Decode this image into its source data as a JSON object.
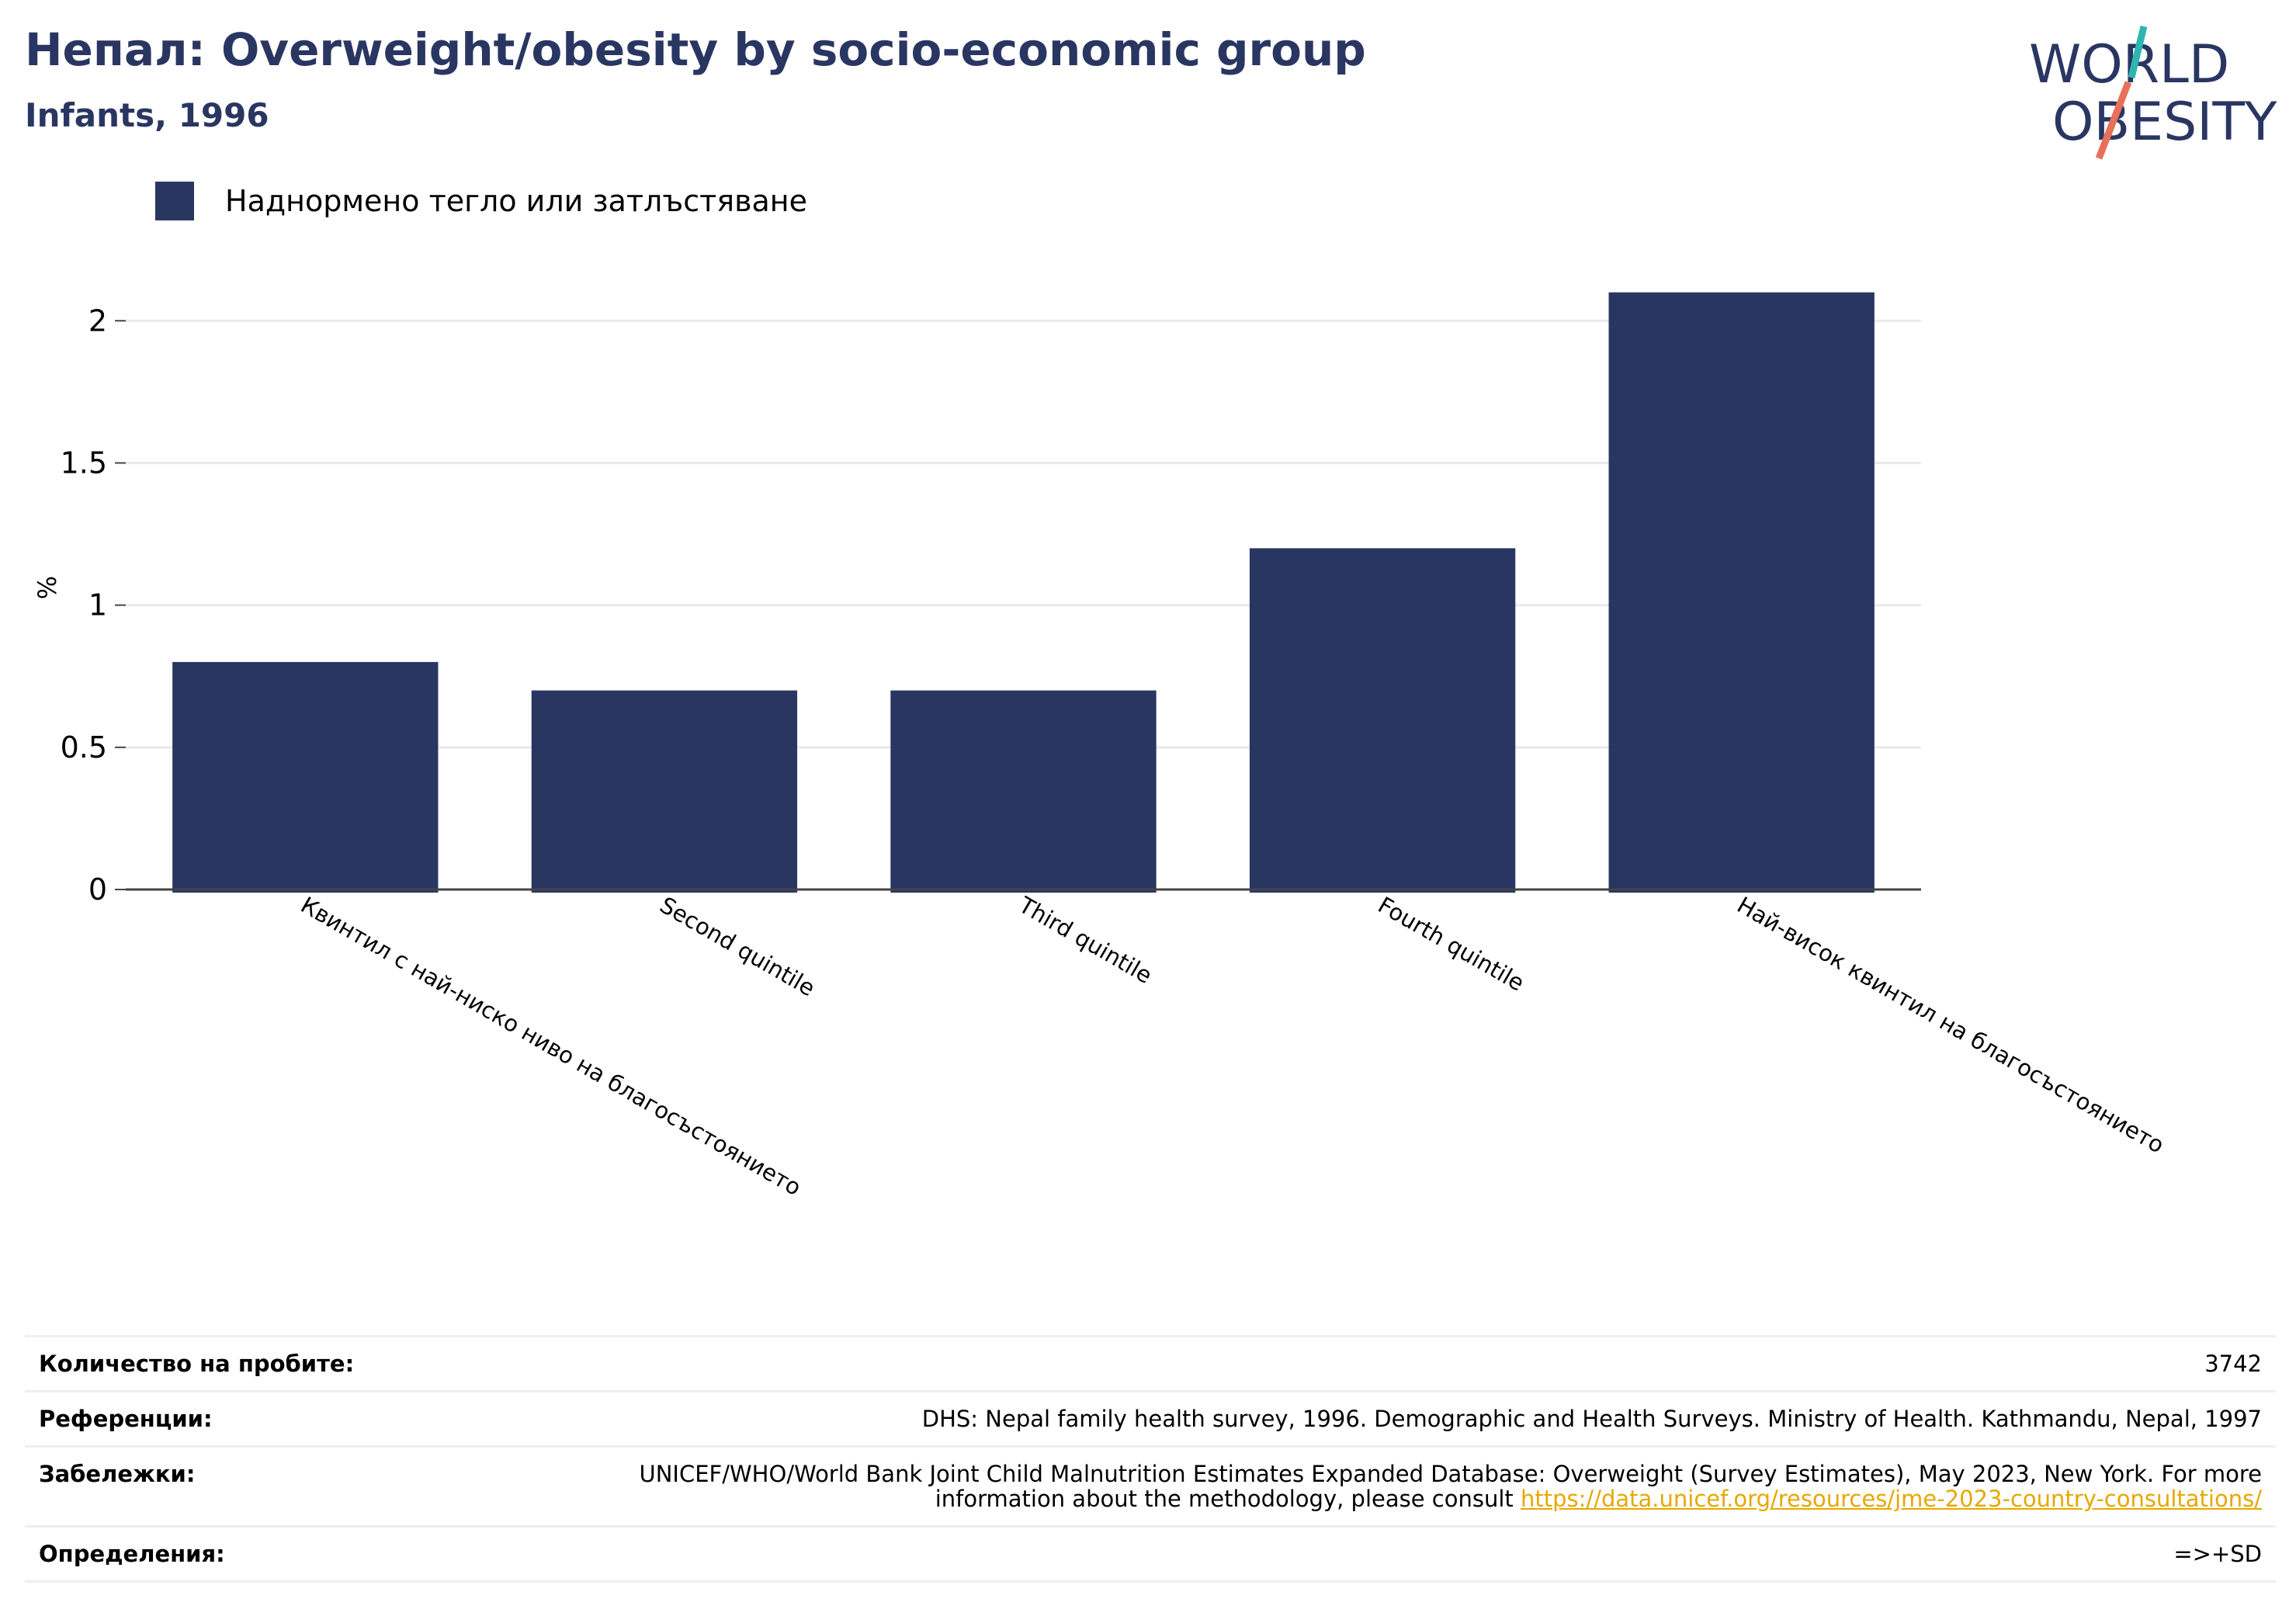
{
  "header": {
    "title": "Непал: Overweight/obesity by socio-economic group",
    "subtitle": "Infants, 1996"
  },
  "logo": {
    "line1": "WORLD",
    "line2": "OBESITY",
    "colors": {
      "text": "#2a3662",
      "teal": "#2fb5b0",
      "coral": "#e8705a"
    }
  },
  "legend": {
    "label": "Наднормено тегло или затлъстяване",
    "color": "#2a3662"
  },
  "chart_data": {
    "type": "bar",
    "categories": [
      "Квинтил с най-ниско ниво на благосъстоянието",
      "Second quintile",
      "Third quintile",
      "Fourth quintile",
      "Най-висок квинтил на благосъстоянието"
    ],
    "series": [
      {
        "name": "Наднормено тегло или затлъстяване",
        "values": [
          0.8,
          0.7,
          0.7,
          1.2,
          2.1
        ],
        "color": "#2a3662"
      }
    ],
    "ylabel": "%",
    "ylim": [
      0,
      2.2
    ],
    "yticks": [
      0,
      0.5,
      1,
      1.5,
      2
    ],
    "ytick_labels": [
      "0",
      "0.5",
      "1",
      "1.5",
      "2"
    ],
    "grid": true,
    "legend_position": "top-left"
  },
  "meta": {
    "sample_size_label": "Количество на пробите:",
    "sample_size_value": "3742",
    "references_label": "Референции:",
    "references_value": "DHS: Nepal family health survey, 1996. Demographic and Health Surveys. Ministry of Health. Kathmandu, Nepal, 1997",
    "notes_label": "Забележки:",
    "notes_value": "UNICEF/WHO/World Bank Joint Child Malnutrition Estimates Expanded Database: Overweight (Survey Estimates), May 2023, New York. For more information about the methodology, please consult ",
    "notes_link": "https://data.unicef.org/resources/jme-2023-country-consultations/",
    "definitions_label": "Определения:",
    "definitions_value": "=>+SD"
  }
}
